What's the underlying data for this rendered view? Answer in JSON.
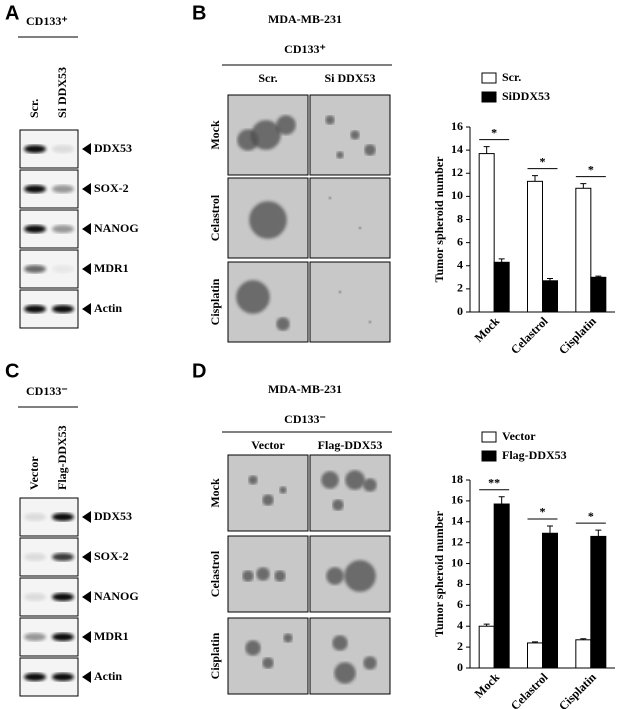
{
  "panels": [
    {
      "label": "A",
      "marker": "CD133⁺",
      "lanes": [
        "Scr.",
        "Si DDX53"
      ],
      "bands": [
        "DDX53",
        "SOX-2",
        "NANOG",
        "MDR1",
        "Actin"
      ]
    },
    {
      "label": "B",
      "cell_line": "MDA-MB-231",
      "marker": "CD133⁺",
      "columns": [
        "Scr.",
        "Si DDX53"
      ],
      "rows": [
        "Mock",
        "Celastrol",
        "Cisplatin"
      ]
    },
    {
      "label": "C",
      "marker": "CD133⁻",
      "lanes": [
        "Vector",
        "Flag-DDX53"
      ],
      "bands": [
        "DDX53",
        "SOX-2",
        "NANOG",
        "MDR1",
        "Actin"
      ]
    },
    {
      "label": "D",
      "cell_line": "MDA-MB-231",
      "marker": "CD133⁻",
      "columns": [
        "Vector",
        "Flag-DDX53"
      ],
      "rows": [
        "Mock",
        "Celastrol",
        "Cisplatin"
      ]
    }
  ],
  "chart_data": [
    {
      "type": "bar",
      "y_label": "Tumor spheroid number",
      "categories": [
        "Mock",
        "Celastrol",
        "Cisplatin"
      ],
      "series": [
        {
          "name": "Scr.",
          "color": "#ffffff",
          "values": [
            13.7,
            11.3,
            10.7
          ],
          "errors": [
            0.6,
            0.5,
            0.4
          ]
        },
        {
          "name": "SiDDX53",
          "color": "#000000",
          "values": [
            4.3,
            2.7,
            3.0
          ],
          "errors": [
            0.3,
            0.2,
            0.1
          ]
        }
      ],
      "annotations": [
        "*",
        "*",
        "*"
      ],
      "ylim": [
        0,
        16
      ],
      "yticks": [
        0,
        2,
        4,
        6,
        8,
        10,
        12,
        14,
        16
      ],
      "legend": "top"
    },
    {
      "type": "bar",
      "y_label": "Tumor spheroid number",
      "categories": [
        "Mock",
        "Celastrol",
        "Cisplatin"
      ],
      "series": [
        {
          "name": "Vector",
          "color": "#ffffff",
          "values": [
            4.0,
            2.4,
            2.7
          ],
          "errors": [
            0.2,
            0.1,
            0.1
          ]
        },
        {
          "name": "Flag-DDX53",
          "color": "#000000",
          "values": [
            15.7,
            12.9,
            12.6
          ],
          "errors": [
            0.7,
            0.7,
            0.6
          ]
        }
      ],
      "annotations": [
        "**",
        "*",
        "*"
      ],
      "ylim": [
        0,
        18
      ],
      "yticks": [
        0,
        2,
        4,
        6,
        8,
        10,
        12,
        14,
        16,
        18
      ],
      "legend": "top"
    }
  ]
}
